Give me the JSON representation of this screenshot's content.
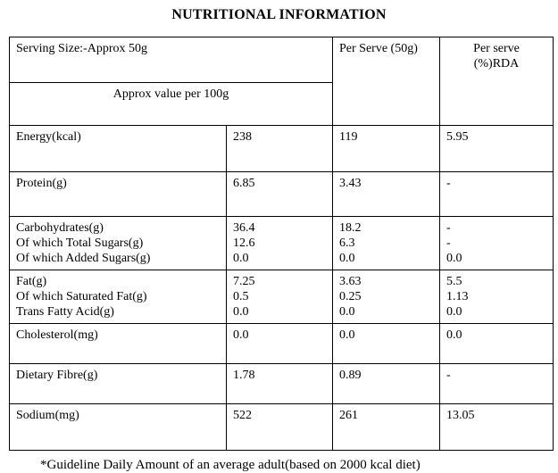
{
  "title": "NUTRITIONAL INFORMATION",
  "table": {
    "header": {
      "serving_size": "Serving Size:-Approx 50g",
      "approx_value": "Approx value per 100g",
      "per_serve": "Per Serve (50g)",
      "per_serve_rda": [
        "Per serve",
        "(%)RDA"
      ]
    },
    "rows": [
      {
        "label": [
          "Energy(kcal)"
        ],
        "per_100g": [
          "238"
        ],
        "per_serve": [
          "119"
        ],
        "rda": [
          "5.95"
        ]
      },
      {
        "label": [
          "Protein(g)"
        ],
        "per_100g": [
          "6.85"
        ],
        "per_serve": [
          "3.43"
        ],
        "rda": [
          "-"
        ]
      },
      {
        "label": [
          "Carbohydrates(g)",
          "Of which Total Sugars(g)",
          "Of which Added Sugars(g)"
        ],
        "per_100g": [
          "36.4",
          "12.6",
          "0.0"
        ],
        "per_serve": [
          "18.2",
          "6.3",
          "0.0"
        ],
        "rda": [
          "-",
          "-",
          "0.0"
        ]
      },
      {
        "label": [
          "Fat(g)",
          "Of which Saturated Fat(g)",
          "Trans Fatty Acid(g)"
        ],
        "per_100g": [
          "7.25",
          "0.5",
          "0.0"
        ],
        "per_serve": [
          "3.63",
          "0.25",
          "0.0"
        ],
        "rda": [
          "5.5",
          "1.13",
          "0.0"
        ]
      },
      {
        "label": [
          "Cholesterol(mg)"
        ],
        "per_100g": [
          "0.0"
        ],
        "per_serve": [
          "0.0"
        ],
        "rda": [
          "0.0"
        ]
      },
      {
        "label": [
          "Dietary Fibre(g)"
        ],
        "per_100g": [
          "1.78"
        ],
        "per_serve": [
          "0.89"
        ],
        "rda": [
          "-"
        ]
      },
      {
        "label": [
          "Sodium(mg)"
        ],
        "per_100g": [
          "522"
        ],
        "per_serve": [
          "261"
        ],
        "rda": [
          "13.05"
        ]
      }
    ]
  },
  "footnote": "*Guideline Daily Amount of an average adult(based on 2000 kcal diet)"
}
